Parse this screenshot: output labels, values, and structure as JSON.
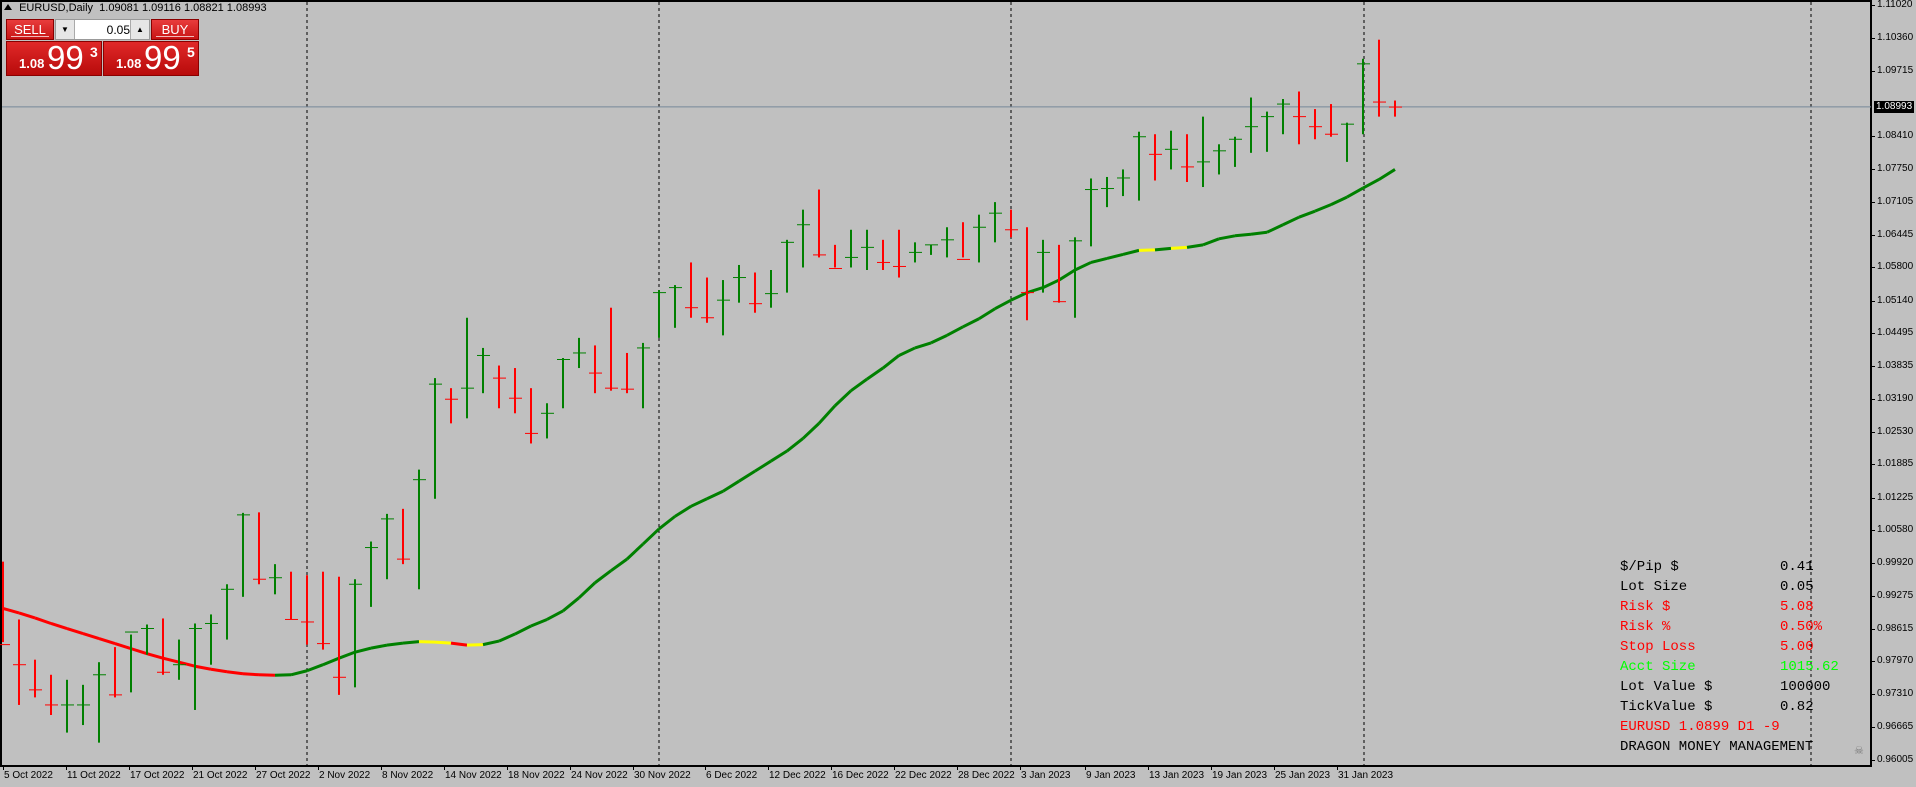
{
  "header": {
    "symbol_timeframe": "EURUSD,Daily",
    "ohlc": "1.09081 1.09116 1.08821 1.08993"
  },
  "trade_panel": {
    "sell_label": "SELL",
    "buy_label": "BUY",
    "lot_value": "0.05",
    "lot_down_icon": "▼",
    "lot_up_icon": "▲",
    "sell_price": {
      "prefix": "1.08",
      "big": "99",
      "sup": "3"
    },
    "buy_price": {
      "prefix": "1.08",
      "big": "99",
      "sup": "5"
    }
  },
  "price_axis": {
    "current_price": "1.08993",
    "labels": [
      "1.11020",
      "1.10360",
      "1.09715",
      "1.08993",
      "1.08410",
      "1.07750",
      "1.07105",
      "1.06445",
      "1.05800",
      "1.05140",
      "1.04495",
      "1.03835",
      "1.03190",
      "1.02530",
      "1.01885",
      "1.01225",
      "1.00580",
      "0.99920",
      "0.99275",
      "0.98615",
      "0.97970",
      "0.97310",
      "0.96665",
      "0.96005"
    ]
  },
  "date_axis": {
    "labels": [
      "5 Oct 2022",
      "11 Oct 2022",
      "17 Oct 2022",
      "21 Oct 2022",
      "27 Oct 2022",
      "2 Nov 2022",
      "8 Nov 2022",
      "14 Nov 2022",
      "18 Nov 2022",
      "24 Nov 2022",
      "30 Nov 2022",
      "6 Dec 2022",
      "12 Dec 2022",
      "16 Dec 2022",
      "22 Dec 2022",
      "28 Dec 2022",
      "3 Jan 2023",
      "9 Jan 2023",
      "13 Jan 2023",
      "19 Jan 2023",
      "25 Jan 2023",
      "31 Jan 2023"
    ]
  },
  "info_panel": {
    "rows": [
      {
        "key": "$/Pip $",
        "value": "0.41",
        "color": "#000000"
      },
      {
        "key": "Lot Size",
        "value": "0.05",
        "color": "#000000"
      },
      {
        "key": "Risk $",
        "value": "5.08",
        "color": "#ff0000"
      },
      {
        "key": "Risk %",
        "value": "0.50%",
        "color": "#ff0000"
      },
      {
        "key": "Stop Loss",
        "value": "5.00",
        "color": "#ff0000"
      },
      {
        "key": "Acct Size",
        "value": "1015.62",
        "color": "#00ff00"
      },
      {
        "key": "Lot Value $",
        "value": "100000",
        "color": "#000000"
      },
      {
        "key": "TickValue $",
        "value": "0.82",
        "color": "#000000"
      },
      {
        "key": "EURUSD 1.0899 D1 -9",
        "value": "",
        "color": "#ff0000"
      },
      {
        "key": "DRAGON MONEY MANAGEMENT",
        "value": "",
        "color": "#000000"
      }
    ],
    "skull_icon": "☠"
  },
  "colors": {
    "background": "#c0c0c0",
    "bull": "#008000",
    "bear": "#ff0000",
    "ma_up": "#008000",
    "ma_down": "#ff0000",
    "ma_flat": "#ffff00",
    "bid_line": "#778899"
  },
  "chart_data": {
    "type": "ohlc",
    "title": "EURUSD,Daily",
    "xlabel": "",
    "ylabel": "",
    "ylim": [
      0.96005,
      1.1102
    ],
    "grid": false,
    "period_separators": [
      "1 Nov 2022",
      "1 Dec 2022",
      "2 Jan 2023",
      "1 Feb 2023"
    ],
    "bid_line": 1.08993,
    "series": [
      {
        "name": "EURUSD Daily bars",
        "bars": [
          {
            "o": 0.996,
            "h": 0.9995,
            "l": 0.9835,
            "c": 0.983
          },
          {
            "o": 0.983,
            "h": 0.988,
            "l": 0.971,
            "c": 0.979
          },
          {
            "o": 0.9785,
            "h": 0.98,
            "l": 0.9725,
            "c": 0.974
          },
          {
            "o": 0.9735,
            "h": 0.977,
            "l": 0.969,
            "c": 0.971
          },
          {
            "o": 0.971,
            "h": 0.976,
            "l": 0.9655,
            "c": 0.971
          },
          {
            "o": 0.971,
            "h": 0.975,
            "l": 0.967,
            "c": 0.971
          },
          {
            "o": 0.971,
            "h": 0.9795,
            "l": 0.9635,
            "c": 0.977
          },
          {
            "o": 0.977,
            "h": 0.9825,
            "l": 0.9725,
            "c": 0.973
          },
          {
            "o": 0.973,
            "h": 0.985,
            "l": 0.9735,
            "c": 0.9855
          },
          {
            "o": 0.9855,
            "h": 0.987,
            "l": 0.981,
            "c": 0.9862
          },
          {
            "o": 0.9862,
            "h": 0.9882,
            "l": 0.977,
            "c": 0.9775
          },
          {
            "o": 0.9775,
            "h": 0.984,
            "l": 0.976,
            "c": 0.979
          },
          {
            "o": 0.979,
            "h": 0.9872,
            "l": 0.97,
            "c": 0.9862
          },
          {
            "o": 0.9862,
            "h": 0.989,
            "l": 0.979,
            "c": 0.9872
          },
          {
            "o": 0.9872,
            "h": 0.995,
            "l": 0.984,
            "c": 0.994
          },
          {
            "o": 0.994,
            "h": 1.0092,
            "l": 0.9925,
            "c": 1.0088
          },
          {
            "o": 1.0088,
            "h": 1.0093,
            "l": 0.995,
            "c": 0.996
          },
          {
            "o": 0.996,
            "h": 0.999,
            "l": 0.993,
            "c": 0.9963
          },
          {
            "o": 0.9963,
            "h": 0.9975,
            "l": 0.988,
            "c": 0.988
          },
          {
            "o": 0.988,
            "h": 0.9968,
            "l": 0.983,
            "c": 0.9875
          },
          {
            "o": 0.9875,
            "h": 0.9975,
            "l": 0.982,
            "c": 0.9832
          },
          {
            "o": 0.9832,
            "h": 0.9965,
            "l": 0.973,
            "c": 0.9765
          },
          {
            "o": 0.9765,
            "h": 0.996,
            "l": 0.9745,
            "c": 0.995
          },
          {
            "o": 0.995,
            "h": 1.0035,
            "l": 0.9905,
            "c": 1.0023
          },
          {
            "o": 1.0023,
            "h": 1.009,
            "l": 0.996,
            "c": 1.008
          },
          {
            "o": 1.008,
            "h": 1.01,
            "l": 0.999,
            "c": 1.0
          },
          {
            "o": 1.0,
            "h": 1.0178,
            "l": 0.994,
            "c": 1.0158
          },
          {
            "o": 1.0158,
            "h": 1.036,
            "l": 1.012,
            "c": 1.0348
          },
          {
            "o": 1.0348,
            "h": 1.034,
            "l": 1.027,
            "c": 1.0318
          },
          {
            "o": 1.0318,
            "h": 1.048,
            "l": 1.028,
            "c": 1.034
          },
          {
            "o": 1.034,
            "h": 1.042,
            "l": 1.033,
            "c": 1.0405
          },
          {
            "o": 1.0405,
            "h": 1.0385,
            "l": 1.03,
            "c": 1.036
          },
          {
            "o": 1.036,
            "h": 1.038,
            "l": 1.029,
            "c": 1.032
          },
          {
            "o": 1.032,
            "h": 1.034,
            "l": 1.023,
            "c": 1.025
          },
          {
            "o": 1.025,
            "h": 1.031,
            "l": 1.024,
            "c": 1.029
          },
          {
            "o": 1.029,
            "h": 1.04,
            "l": 1.03,
            "c": 1.0397
          },
          {
            "o": 1.0397,
            "h": 1.044,
            "l": 1.038,
            "c": 1.041
          },
          {
            "o": 1.041,
            "h": 1.0425,
            "l": 1.033,
            "c": 1.037
          },
          {
            "o": 1.037,
            "h": 1.05,
            "l": 1.0335,
            "c": 1.034
          },
          {
            "o": 1.034,
            "h": 1.041,
            "l": 1.033,
            "c": 1.0338
          },
          {
            "o": 1.0338,
            "h": 1.043,
            "l": 1.03,
            "c": 1.042
          },
          {
            "o": 1.042,
            "h": 1.0535,
            "l": 1.044,
            "c": 1.053
          },
          {
            "o": 1.053,
            "h": 1.0545,
            "l": 1.046,
            "c": 1.054
          },
          {
            "o": 1.054,
            "h": 1.059,
            "l": 1.048,
            "c": 1.05
          },
          {
            "o": 1.05,
            "h": 1.056,
            "l": 1.047,
            "c": 1.048
          },
          {
            "o": 1.048,
            "h": 1.0555,
            "l": 1.0445,
            "c": 1.0515
          },
          {
            "o": 1.0515,
            "h": 1.0585,
            "l": 1.051,
            "c": 1.056
          },
          {
            "o": 1.056,
            "h": 1.057,
            "l": 1.049,
            "c": 1.0508
          },
          {
            "o": 1.0508,
            "h": 1.0575,
            "l": 1.05,
            "c": 1.0528
          },
          {
            "o": 1.0528,
            "h": 1.0635,
            "l": 1.053,
            "c": 1.063
          },
          {
            "o": 1.063,
            "h": 1.0695,
            "l": 1.058,
            "c": 1.0665
          },
          {
            "o": 1.0665,
            "h": 1.0735,
            "l": 1.06,
            "c": 1.0605
          },
          {
            "o": 1.0605,
            "h": 1.0625,
            "l": 1.058,
            "c": 1.0578
          },
          {
            "o": 1.0578,
            "h": 1.0655,
            "l": 1.058,
            "c": 1.06
          },
          {
            "o": 1.06,
            "h": 1.0655,
            "l": 1.0575,
            "c": 1.062
          },
          {
            "o": 1.062,
            "h": 1.0635,
            "l": 1.0575,
            "c": 1.059
          },
          {
            "o": 1.059,
            "h": 1.0655,
            "l": 1.056,
            "c": 1.0582
          },
          {
            "o": 1.0582,
            "h": 1.063,
            "l": 1.059,
            "c": 1.061
          },
          {
            "o": 1.061,
            "h": 1.0625,
            "l": 1.0605,
            "c": 1.0625
          },
          {
            "o": 1.0625,
            "h": 1.066,
            "l": 1.06,
            "c": 1.0635
          },
          {
            "o": 1.0635,
            "h": 1.067,
            "l": 1.06,
            "c": 1.0596
          },
          {
            "o": 1.0596,
            "h": 1.0685,
            "l": 1.059,
            "c": 1.066
          },
          {
            "o": 1.066,
            "h": 1.071,
            "l": 1.063,
            "c": 1.0688
          },
          {
            "o": 1.0688,
            "h": 1.0695,
            "l": 1.064,
            "c": 1.0655
          },
          {
            "o": 1.0655,
            "h": 1.066,
            "l": 1.0475,
            "c": 1.053
          },
          {
            "o": 1.053,
            "h": 1.0635,
            "l": 1.053,
            "c": 1.061
          },
          {
            "o": 1.061,
            "h": 1.0625,
            "l": 1.051,
            "c": 1.0512
          },
          {
            "o": 1.0512,
            "h": 1.064,
            "l": 1.048,
            "c": 1.0633
          },
          {
            "o": 1.0633,
            "h": 1.0757,
            "l": 1.0622,
            "c": 1.0735
          },
          {
            "o": 1.0735,
            "h": 1.076,
            "l": 1.07,
            "c": 1.0737
          },
          {
            "o": 1.0737,
            "h": 1.0775,
            "l": 1.0722,
            "c": 1.0758
          },
          {
            "o": 1.0758,
            "h": 1.085,
            "l": 1.0713,
            "c": 1.084
          },
          {
            "o": 1.084,
            "h": 1.0845,
            "l": 1.0753,
            "c": 1.0805
          },
          {
            "o": 1.0805,
            "h": 1.0852,
            "l": 1.0775,
            "c": 1.0815
          },
          {
            "o": 1.0815,
            "h": 1.0845,
            "l": 1.075,
            "c": 1.078
          },
          {
            "o": 1.078,
            "h": 1.088,
            "l": 1.074,
            "c": 1.079
          },
          {
            "o": 1.079,
            "h": 1.0825,
            "l": 1.0765,
            "c": 1.0812
          },
          {
            "o": 1.0812,
            "h": 1.084,
            "l": 1.078,
            "c": 1.0835
          },
          {
            "o": 1.0835,
            "h": 1.0918,
            "l": 1.0808,
            "c": 1.086
          },
          {
            "o": 1.086,
            "h": 1.089,
            "l": 1.081,
            "c": 1.088
          },
          {
            "o": 1.088,
            "h": 1.0915,
            "l": 1.0845,
            "c": 1.0905
          },
          {
            "o": 1.0905,
            "h": 1.093,
            "l": 1.0825,
            "c": 1.088
          },
          {
            "o": 1.088,
            "h": 1.0895,
            "l": 1.0835,
            "c": 1.086
          },
          {
            "o": 1.086,
            "h": 1.0905,
            "l": 1.084,
            "c": 1.0845
          },
          {
            "o": 1.0845,
            "h": 1.0868,
            "l": 1.079,
            "c": 1.0865
          },
          {
            "o": 1.0865,
            "h": 1.0995,
            "l": 1.0845,
            "c": 1.0985
          },
          {
            "o": 1.0985,
            "h": 1.1033,
            "l": 1.088,
            "c": 1.0909
          },
          {
            "o": 1.0909,
            "h": 1.0912,
            "l": 1.088,
            "c": 1.0899
          }
        ]
      },
      {
        "name": "Moving average (color-coded trend)",
        "values": [
          0.9902,
          0.9893,
          0.9883,
          0.9872,
          0.9862,
          0.9852,
          0.9842,
          0.9832,
          0.9822,
          0.9812,
          0.9803,
          0.9795,
          0.9787,
          0.9781,
          0.9776,
          0.9772,
          0.977,
          0.9769,
          0.977,
          0.9778,
          0.979,
          0.9803,
          0.9815,
          0.9823,
          0.9829,
          0.9833,
          0.9836,
          0.9835,
          0.9833,
          0.9829,
          0.983,
          0.9837,
          0.9851,
          0.9867,
          0.988,
          0.9897,
          0.9923,
          0.9953,
          0.9977,
          1.0,
          1.003,
          1.006,
          1.0085,
          1.0105,
          1.012,
          1.0135,
          1.0155,
          1.0175,
          1.0195,
          1.0215,
          1.024,
          1.027,
          1.0305,
          1.0335,
          1.0358,
          1.038,
          1.0405,
          1.042,
          1.043,
          1.0445,
          1.0462,
          1.0478,
          1.0498,
          1.0515,
          1.053,
          1.054,
          1.0555,
          1.0575,
          1.059,
          1.0598,
          1.0606,
          1.0614,
          1.0615,
          1.0618,
          1.062,
          1.0625,
          1.0637,
          1.0643,
          1.0646,
          1.065,
          1.0665,
          1.068,
          1.0692,
          1.0705,
          1.072,
          1.0738,
          1.0755,
          1.0775
        ]
      }
    ]
  }
}
